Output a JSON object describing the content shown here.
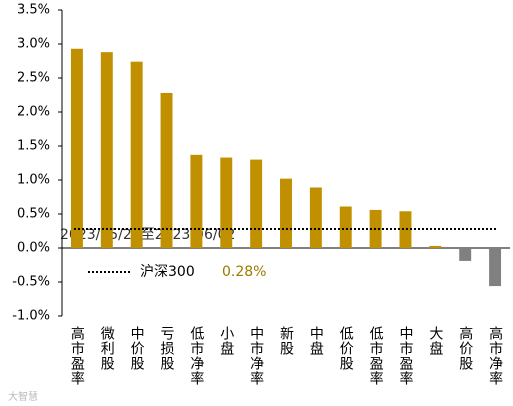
{
  "chart_data": {
    "type": "bar",
    "categories": [
      "高市盈率",
      "微利股",
      "中价股",
      "亏损股",
      "低市净率",
      "小盘",
      "中市净率",
      "新股",
      "中盘",
      "低价股",
      "低市盈率",
      "中市盈率",
      "大盘",
      "高价股",
      "高市净率"
    ],
    "values": [
      2.93,
      2.88,
      2.74,
      2.28,
      1.37,
      1.33,
      1.3,
      1.02,
      0.89,
      0.61,
      0.56,
      0.54,
      0.03,
      -0.19,
      -0.56
    ],
    "colors": [
      "#c09000",
      "#c09000",
      "#c09000",
      "#c09000",
      "#c09000",
      "#c09000",
      "#c09000",
      "#c09000",
      "#c09000",
      "#c09000",
      "#c09000",
      "#c09000",
      "#c09000",
      "#808080",
      "#808080"
    ],
    "ylim": [
      -1.0,
      3.5
    ],
    "yticks": [
      {
        "value": -1.0,
        "label": "-1.0%"
      },
      {
        "value": -0.5,
        "label": "-0.5%"
      },
      {
        "value": 0,
        "label": "0.0%"
      },
      {
        "value": 0.5,
        "label": "0.5%"
      },
      {
        "value": 1.0,
        "label": "1.0%"
      },
      {
        "value": 1.5,
        "label": "1.5%"
      },
      {
        "value": 2.0,
        "label": "2.0%"
      },
      {
        "value": 2.5,
        "label": "2.5%"
      },
      {
        "value": 3.0,
        "label": "3.0%"
      },
      {
        "value": 3.5,
        "label": "3.5%"
      }
    ],
    "benchmark": {
      "name": "沪深300",
      "value": 0.28,
      "value_label": "0.28%",
      "color": "#9a7a00"
    },
    "annotation": "2023/05/29至2023/06/02",
    "watermark": "大智慧",
    "grid": false
  }
}
